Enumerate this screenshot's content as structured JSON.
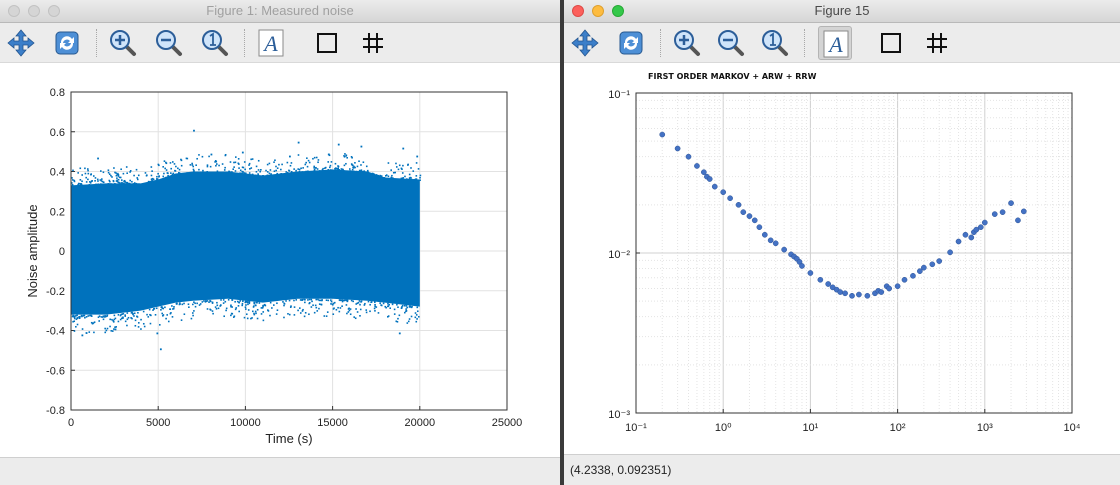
{
  "window1": {
    "title": "Figure 1: Measured noise",
    "toolbar": [
      "pan-tool",
      "rotate-tool",
      "zoom-in-tool",
      "zoom-out-tool",
      "data-cursor-tool",
      "text-insert-tool",
      "box-tool",
      "grid-tool"
    ],
    "chart_data": {
      "type": "scatter",
      "title": "",
      "xlabel": "Time (s)",
      "ylabel": "Noise amplitude",
      "xlim": [
        0,
        25000
      ],
      "ylim": [
        -0.8,
        0.8
      ],
      "xticks": [
        0,
        5000,
        10000,
        15000,
        20000,
        25000
      ],
      "xtick_labels": [
        "0",
        "5000",
        "10000",
        "15000",
        "20000",
        "25000"
      ],
      "yticks": [
        0.8,
        0.6,
        0.4,
        0.2,
        0,
        -0.2,
        -0.4,
        -0.6,
        -0.8
      ],
      "ytick_labels": [
        "0.8",
        "0.6",
        "0.4",
        "0.2",
        "0",
        "-0.2",
        "-0.4",
        "-0.6",
        "-0.8"
      ],
      "grid": true,
      "color": "#0072BD",
      "band": {
        "x": [
          0,
          2000,
          4000,
          5000,
          6000,
          7000,
          9000,
          10000,
          11000,
          13000,
          15000,
          17000,
          18000,
          20000
        ],
        "upper": [
          0.33,
          0.34,
          0.34,
          0.36,
          0.39,
          0.4,
          0.4,
          0.39,
          0.38,
          0.4,
          0.41,
          0.4,
          0.37,
          0.36
        ],
        "lower": [
          -0.32,
          -0.32,
          -0.3,
          -0.28,
          -0.26,
          -0.25,
          -0.24,
          -0.25,
          -0.26,
          -0.24,
          -0.24,
          -0.25,
          -0.26,
          -0.28
        ]
      },
      "outliers": [
        [
          600,
          -0.42
        ],
        [
          2500,
          -0.39
        ],
        [
          4900,
          -0.41
        ],
        [
          5100,
          -0.49
        ],
        [
          1500,
          0.47
        ],
        [
          7000,
          0.61
        ],
        [
          8000,
          0.49
        ],
        [
          9800,
          0.5
        ],
        [
          12500,
          0.48
        ],
        [
          13000,
          0.55
        ],
        [
          15300,
          0.54
        ],
        [
          16600,
          0.53
        ],
        [
          19000,
          0.52
        ],
        [
          18800,
          -0.41
        ],
        [
          19800,
          0.48
        ]
      ]
    }
  },
  "window2": {
    "title": "Figure 15",
    "toolbar": [
      "pan-tool",
      "rotate-tool",
      "zoom-in-tool",
      "zoom-out-tool",
      "data-cursor-tool",
      "text-insert-tool",
      "box-tool",
      "grid-tool"
    ],
    "status": "(4.2338, 0.092351)",
    "chart_data": {
      "type": "scatter",
      "title": "FIRST ORDER MARKOV + ARW + RRW",
      "xlabel": "",
      "ylabel": "",
      "xscale": "log",
      "yscale": "log",
      "xlim": [
        0.1,
        10000
      ],
      "ylim": [
        0.001,
        0.1
      ],
      "xtick_labels": [
        "10⁻¹",
        "10⁰",
        "10¹",
        "10²",
        "10³",
        "10⁴"
      ],
      "ytick_labels": [
        "10⁻¹",
        "10⁻²",
        "10⁻³"
      ],
      "grid": true,
      "color": "#4472C4",
      "x": [
        0.2,
        0.3,
        0.4,
        0.5,
        0.6,
        0.65,
        0.7,
        0.8,
        1.0,
        1.2,
        1.5,
        1.7,
        2.0,
        2.3,
        2.6,
        3.0,
        3.5,
        4.0,
        5.0,
        6.0,
        6.5,
        7.0,
        7.5,
        8.0,
        10,
        13,
        16,
        18,
        20,
        22,
        25,
        30,
        36,
        45,
        55,
        60,
        65,
        75,
        80,
        100,
        120,
        150,
        180,
        200,
        250,
        300,
        400,
        500,
        600,
        700,
        750,
        800,
        900,
        1000,
        1300,
        1600,
        2000,
        2400,
        2800
      ],
      "y": [
        0.055,
        0.045,
        0.04,
        0.035,
        0.032,
        0.03,
        0.029,
        0.026,
        0.024,
        0.022,
        0.02,
        0.018,
        0.017,
        0.016,
        0.0145,
        0.013,
        0.012,
        0.0115,
        0.0105,
        0.0098,
        0.0095,
        0.0092,
        0.0088,
        0.0083,
        0.0075,
        0.0068,
        0.0064,
        0.0061,
        0.0059,
        0.0057,
        0.0056,
        0.0054,
        0.0055,
        0.0054,
        0.0056,
        0.0058,
        0.0057,
        0.0062,
        0.006,
        0.0062,
        0.0068,
        0.0072,
        0.0077,
        0.0081,
        0.0085,
        0.0089,
        0.0101,
        0.0118,
        0.013,
        0.0125,
        0.0135,
        0.014,
        0.0145,
        0.0155,
        0.0175,
        0.018,
        0.0205,
        0.016,
        0.0182
      ]
    }
  }
}
